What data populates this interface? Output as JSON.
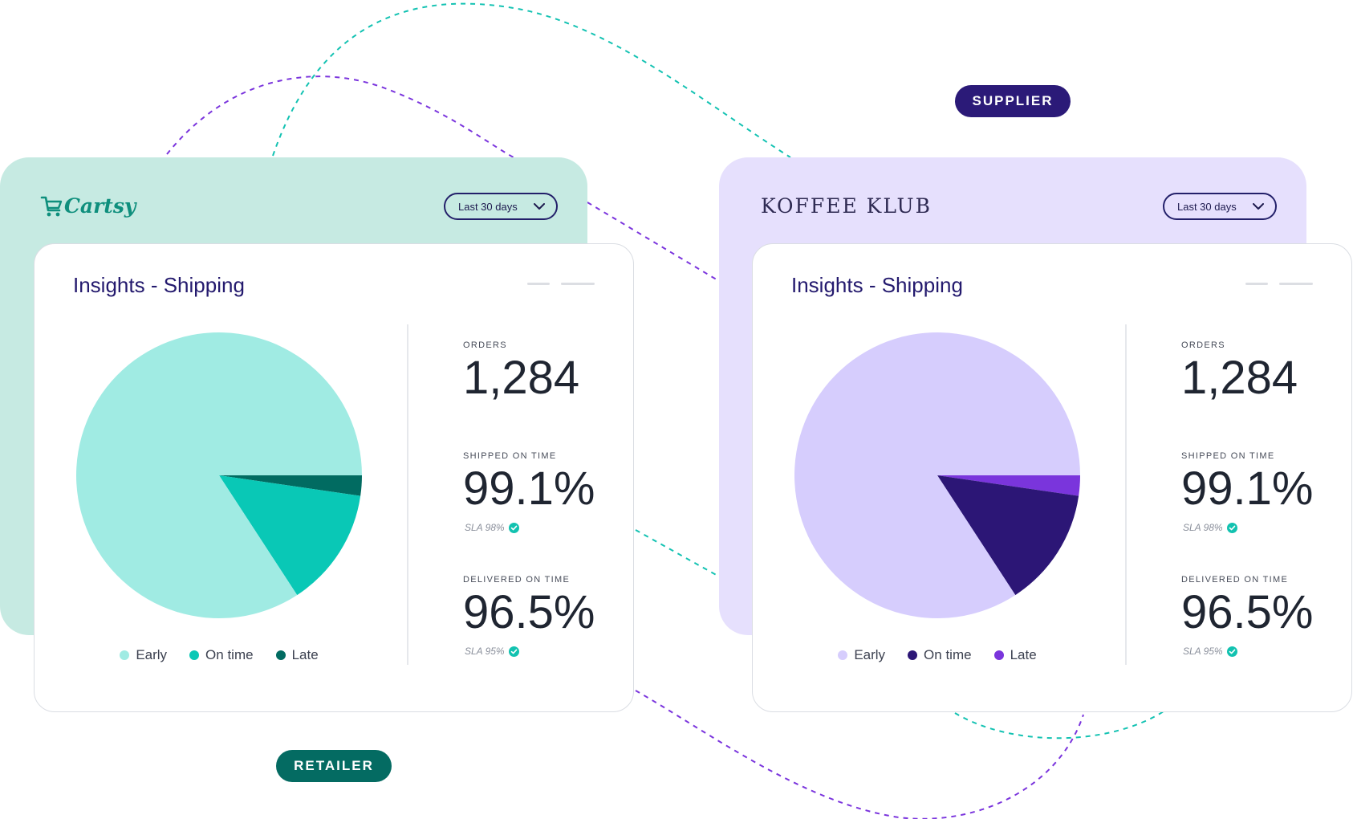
{
  "colors": {
    "supplier_accent": "#2b1a78",
    "retailer_accent": "#046b62",
    "retailer_backdrop": "#c6eae2",
    "supplier_backdrop": "#e6e0fd",
    "dash_teal": "#13c2b2",
    "dash_purple": "#7b35dd"
  },
  "labels": {
    "supplier": "SUPPLIER",
    "retailer": "RETAILER"
  },
  "retailer": {
    "logo_text": "Cartsy",
    "logo_icon": "cart-icon",
    "range_select": "Last 30 days",
    "card": {
      "title": "Insights - Shipping",
      "metrics": {
        "orders_label": "ORDERS",
        "orders_value": "1,284",
        "shipped_label": "SHIPPED ON TIME",
        "shipped_value": "99.1%",
        "shipped_sla": "SLA 98%",
        "delivered_label": "DELIVERED ON TIME",
        "delivered_value": "96.5%",
        "delivered_sla": "SLA 95%"
      }
    }
  },
  "supplier": {
    "logo_text": "KOFFEE KLUB",
    "range_select": "Last 30 days",
    "card": {
      "title": "Insights - Shipping",
      "metrics": {
        "orders_label": "ORDERS",
        "orders_value": "1,284",
        "shipped_label": "SHIPPED ON TIME",
        "shipped_value": "99.1%",
        "shipped_sla": "SLA 98%",
        "delivered_label": "DELIVERED ON TIME",
        "delivered_value": "96.5%",
        "delivered_sla": "SLA 95%"
      }
    }
  },
  "chart_data": [
    {
      "type": "pie",
      "title": "",
      "categories": [
        "Early",
        "On time",
        "Late"
      ],
      "values": [
        84.2,
        13.5,
        2.3
      ],
      "colors": [
        "#a0ebe3",
        "#09c8b6",
        "#016b61"
      ],
      "legend": "bottom"
    },
    {
      "type": "pie",
      "title": "",
      "categories": [
        "Early",
        "On time",
        "Late"
      ],
      "values": [
        84.2,
        13.5,
        2.3
      ],
      "colors": [
        "#d6cdfd",
        "#2c1676",
        "#7a35dc"
      ],
      "legend": "bottom"
    }
  ]
}
